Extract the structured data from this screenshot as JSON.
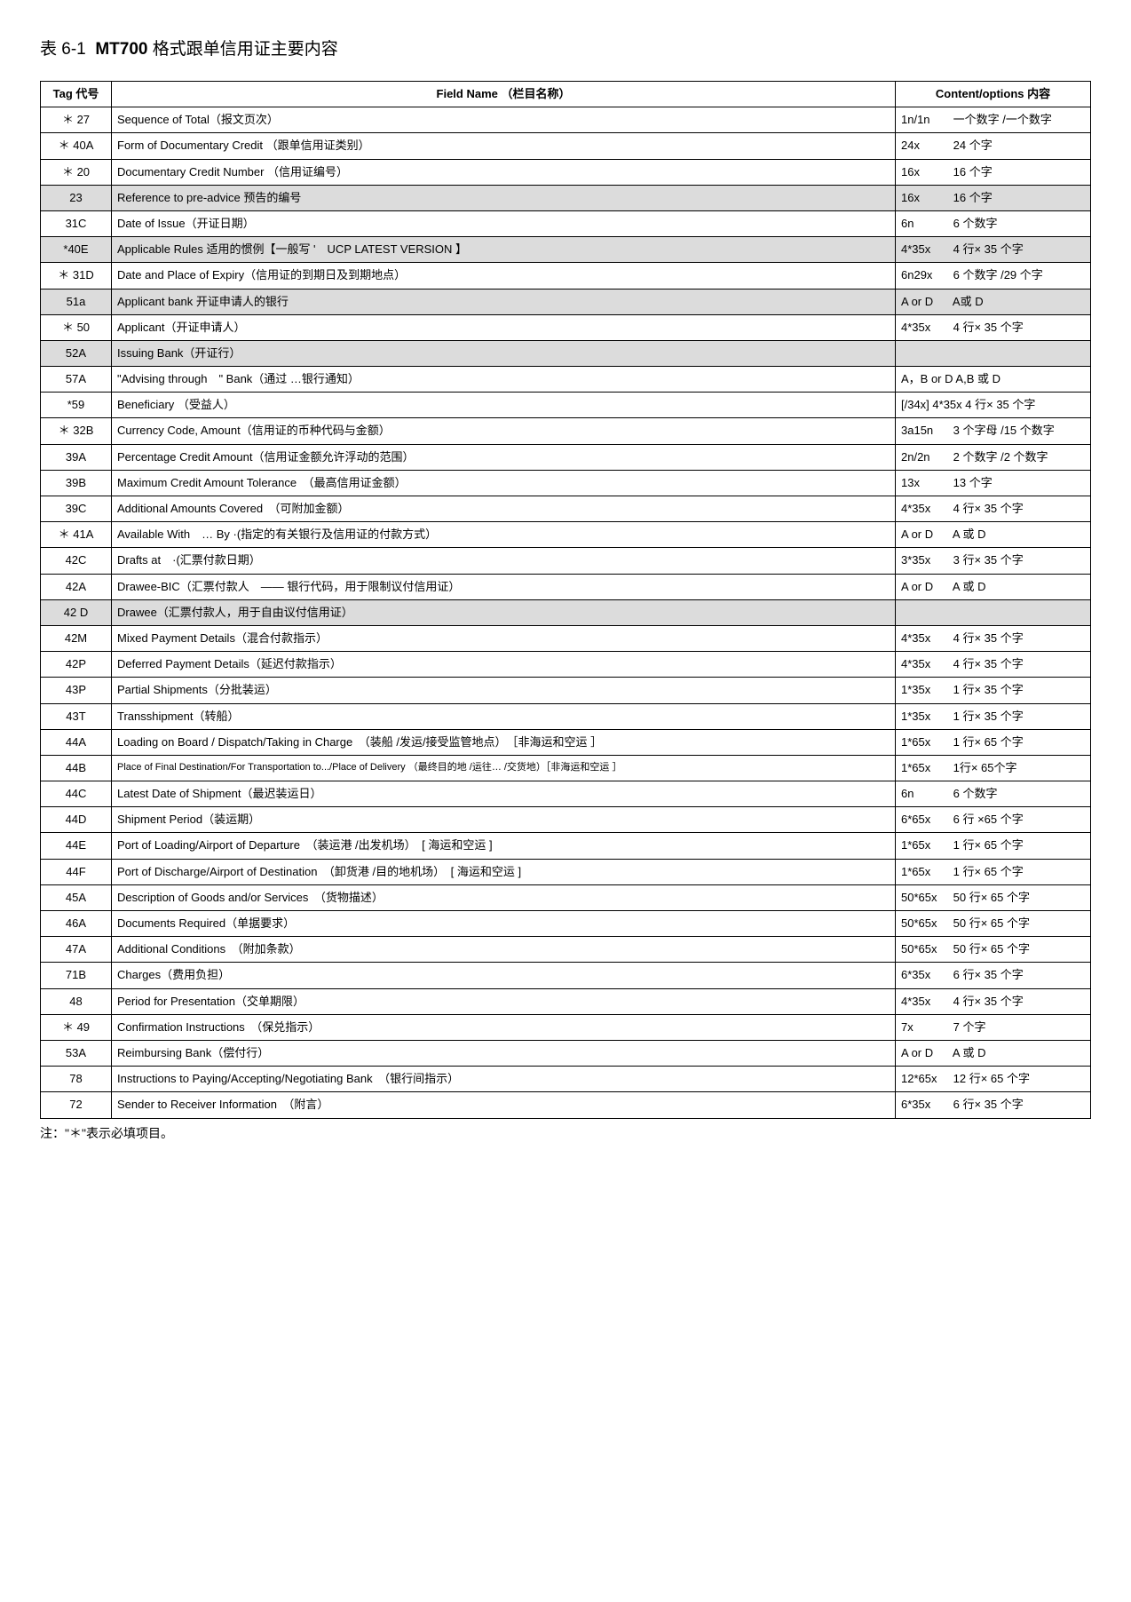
{
  "title_prefix": "表 6-1",
  "title_bold": "MT700",
  "title_rest": " 格式跟单信用证主要内容",
  "columns": {
    "tag": "Tag 代号",
    "field": "Field Name （栏目名称）",
    "content": "Content/options 内容"
  },
  "rows": [
    {
      "tag": "＊ 27",
      "field": "Sequence of Total（报文页次）",
      "code": "1n/1n",
      "desc": "一个数字 /一个数字",
      "shaded": false
    },
    {
      "tag": "＊ 40A",
      "field": "Form of Documentary Credit （跟单信用证类别）",
      "code": "24x",
      "desc": "24 个字",
      "shaded": false
    },
    {
      "tag": "＊ 20",
      "field": "Documentary Credit Number （信用证编号）",
      "code": "16x",
      "desc": "16 个字",
      "shaded": false
    },
    {
      "tag": "23",
      "field": "Reference to pre-advice 预告的编号",
      "code": "16x",
      "desc": "16 个字",
      "shaded": true
    },
    {
      "tag": "31C",
      "field": "Date of Issue（开证日期）",
      "code": "6n",
      "desc": "6 个数字",
      "shaded": false
    },
    {
      "tag": "*40E",
      "field": "Applicable Rules   适用的惯例【一般写 '　UCP LATEST VERSION  】",
      "code": "4*35x",
      "desc": "4 行× 35 个字",
      "shaded": true
    },
    {
      "tag": "＊ 31D",
      "field": "Date and Place of Expiry（信用证的到期日及到期地点）",
      "code": "6n29x",
      "desc": "6 个数字 /29 个字",
      "shaded": false
    },
    {
      "tag": "51a",
      "field": "Applicant bank   开证申请人的银行",
      "code": "A or D",
      "desc": "A或 D",
      "shaded": true
    },
    {
      "tag": "＊ 50",
      "field": "Applicant（开证申请人）",
      "code": "4*35x",
      "desc": "4 行× 35 个字",
      "shaded": false
    },
    {
      "tag": "52A",
      "field": "Issuing Bank（开证行）",
      "code": "",
      "desc": "",
      "shaded": true
    },
    {
      "tag": "57A",
      "field": "\"Advising through　\" Bank（通过 …银行通知）",
      "code": "A，B or D",
      "desc": "A,B 或 D",
      "shaded": false
    },
    {
      "tag": "*59",
      "field": "Beneficiary （受益人）",
      "code": "[/34x] 4*35x",
      "desc": "4 行× 35 个字",
      "shaded": false
    },
    {
      "tag": "＊ 32B",
      "field": "Currency Code, Amount（信用证的币种代码与金额）",
      "code": "3a15n",
      "desc": "3 个字母 /15 个数字",
      "shaded": false
    },
    {
      "tag": "39A",
      "field": "Percentage Credit Amount（信用证金额允许浮动的范围）",
      "code": "2n/2n",
      "desc": "2 个数字 /2 个数字",
      "shaded": false
    },
    {
      "tag": "39B",
      "field": "Maximum Credit Amount Tolerance　（最高信用证金额）",
      "code": "13x",
      "desc": "13 个字",
      "shaded": false
    },
    {
      "tag": "39C",
      "field": "Additional Amounts Covered　（可附加金额）",
      "code": "4*35x",
      "desc": "4 行× 35 个字",
      "shaded": false
    },
    {
      "tag": "＊ 41A",
      "field": "Available With　… By ·(指定的有关银行及信用证的付款方式）",
      "code": "A or D",
      "desc": "A 或 D",
      "shaded": false
    },
    {
      "tag": "42C",
      "field": "Drafts at　·(汇票付款日期）",
      "code": "3*35x",
      "desc": "3 行× 35 个字",
      "shaded": false
    },
    {
      "tag": "42A",
      "field": "Drawee-BIC（汇票付款人　—— 银行代码，用于限制议付信用证）",
      "code": "A or D",
      "desc": "A 或 D",
      "shaded": false
    },
    {
      "tag": "42 D",
      "field": "Drawee（汇票付款人，用于自由议付信用证）",
      "code": "",
      "desc": "",
      "shaded": true
    },
    {
      "tag": "42M",
      "field": "Mixed Payment Details（混合付款指示）",
      "code": "4*35x",
      "desc": "4 行× 35 个字",
      "shaded": false
    },
    {
      "tag": "42P",
      "field": "Deferred Payment Details（延迟付款指示）",
      "code": "4*35x",
      "desc": "4 行× 35 个字",
      "shaded": false
    },
    {
      "tag": "43P",
      "field": "Partial Shipments（分批装运）",
      "code": "1*35x",
      "desc": "1 行× 35 个字",
      "shaded": false
    },
    {
      "tag": "43T",
      "field": "Transshipment（转船）",
      "code": "1*35x",
      "desc": "1 行× 35 个字",
      "shaded": false
    },
    {
      "tag": "44A",
      "field": "Loading on Board / Dispatch/Taking in Charge　（装船 /发运/接受监管地点）　［非海运和空运 ］",
      "code": "1*65x",
      "desc": "1 行× 65 个字",
      "shaded": false
    },
    {
      "tag": "44B",
      "field": "Place of Final Destination/For Transportation to.../Place of Delivery （最终目的地 /运往… /交货地）［非海运和空运 ］",
      "code": "1*65x",
      "desc": "1行× 65个字",
      "shaded": false,
      "small": true
    },
    {
      "tag": "44C",
      "field": "Latest Date of Shipment（最迟装运日）",
      "code": "6n",
      "desc": "6 个数字",
      "shaded": false
    },
    {
      "tag": "44D",
      "field": "Shipment Period（装运期）",
      "code": "6*65x",
      "desc": "6 行 ×65 个字",
      "shaded": false
    },
    {
      "tag": "44E",
      "field": "Port of Loading/Airport of Departure　（装运港 /出发机场）　[ 海运和空运 ]",
      "code": "1*65x",
      "desc": "1 行× 65 个字",
      "shaded": false
    },
    {
      "tag": "44F",
      "field": "Port of Discharge/Airport of Destination　（卸货港 /目的地机场）　[ 海运和空运 ]",
      "code": "1*65x",
      "desc": "1 行× 65 个字",
      "shaded": false
    },
    {
      "tag": "45A",
      "field": "Description of Goods and/or Services　（货物描述）",
      "code": "50*65x",
      "desc": "50 行× 65 个字",
      "shaded": false
    },
    {
      "tag": "46A",
      "field": "Documents Required（单据要求）",
      "code": "50*65x",
      "desc": "50 行× 65 个字",
      "shaded": false
    },
    {
      "tag": "47A",
      "field": "Additional Conditions　（附加条款）",
      "code": "50*65x",
      "desc": "50 行× 65 个字",
      "shaded": false
    },
    {
      "tag": "71B",
      "field": "Charges（费用负担）",
      "code": "6*35x",
      "desc": "6 行× 35 个字",
      "shaded": false
    },
    {
      "tag": "48",
      "field": "Period for Presentation（交单期限）",
      "code": "4*35x",
      "desc": "4 行× 35 个字",
      "shaded": false
    },
    {
      "tag": "＊ 49",
      "field": "Confirmation Instructions　（保兑指示）",
      "code": "7x",
      "desc": "7 个字",
      "shaded": false
    },
    {
      "tag": "53A",
      "field": "Reimbursing Bank（偿付行）",
      "code": "A or D",
      "desc": "A 或 D",
      "shaded": false
    },
    {
      "tag": "78",
      "field": "Instructions to Paying/Accepting/Negotiating Bank　（银行间指示）",
      "code": "12*65x",
      "desc": "12 行× 65 个字",
      "shaded": false
    },
    {
      "tag": "72",
      "field": "Sender to Receiver Information　（附言）",
      "code": "6*35x",
      "desc": "6 行× 35 个字",
      "shaded": false
    }
  ],
  "footnote": "注：\"＊\"表示必填项目。"
}
